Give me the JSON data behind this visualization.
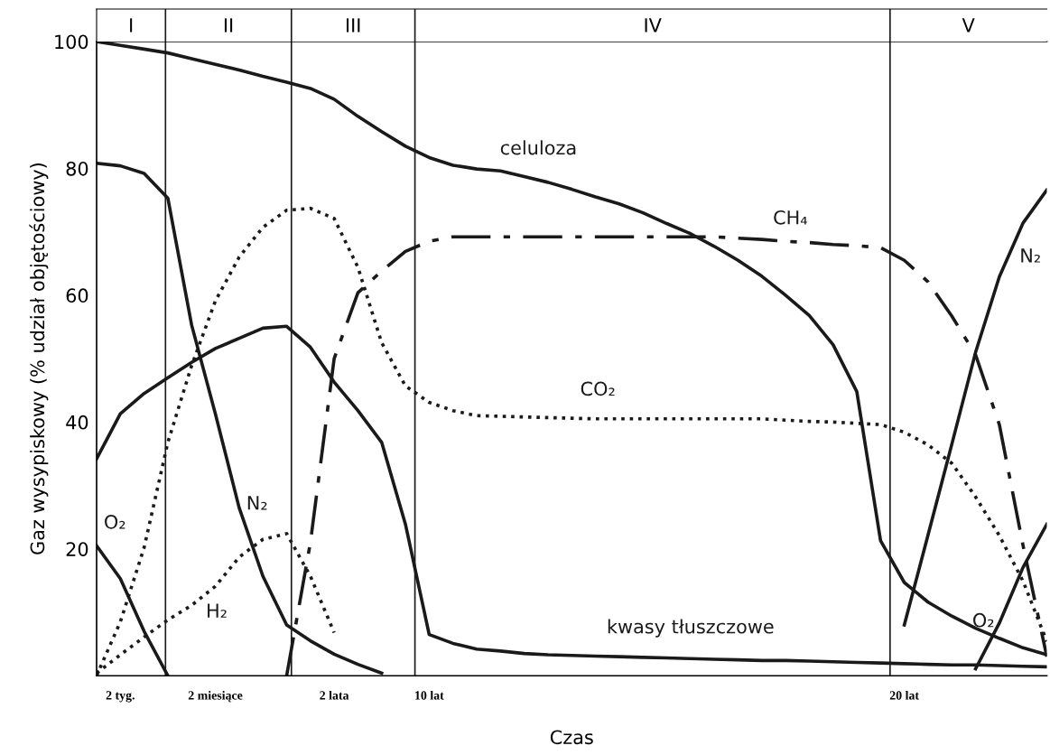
{
  "chart_data": {
    "type": "line",
    "xlabel": "Czas",
    "ylabel": "Gaz wysypiskowy (% udział objętościowy)",
    "categories": [
      null,
      "2 tyg.",
      null,
      null,
      null,
      "2 miesiące",
      null,
      null,
      null,
      null,
      "2 lata",
      null,
      null,
      null,
      "10 lat",
      null,
      null,
      null,
      null,
      null,
      null,
      null,
      null,
      null,
      null,
      null,
      null,
      null,
      null,
      null,
      null,
      null,
      null,
      null,
      "20 lat",
      null,
      null,
      null,
      null,
      null,
      null
    ],
    "ylim": [
      0,
      100
    ],
    "yticks": [
      20,
      40,
      60,
      80,
      100
    ],
    "annotations": [
      "I",
      "II",
      "III",
      "IV",
      "V"
    ],
    "series": [
      {
        "name": "celuloza",
        "color": "#1a1a1a",
        "line_style": "solid",
        "values": [
          100,
          99.4,
          98.8,
          98.2,
          97.3,
          96.4,
          95.5,
          94.5,
          93.6,
          92.6,
          90.9,
          88.2,
          85.8,
          83.5,
          81.7,
          80.5,
          79.9,
          79.6,
          78.7,
          77.8,
          76.7,
          75.5,
          74.4,
          73,
          71.3,
          69.7,
          67.7,
          65.5,
          63,
          60,
          56.8,
          52.2,
          44.8,
          21.3,
          14.7,
          11.6,
          9.4,
          7.5,
          5.9,
          4.4,
          3.3
        ]
      },
      {
        "name": "kwasy tłuszczowe",
        "color": "#1a1a1a",
        "line_style": "solid",
        "values": [
          34.2,
          41.3,
          44.5,
          47,
          49.4,
          51.6,
          53.2,
          54.8,
          55.1,
          51.8,
          46.3,
          41.8,
          36.8,
          23.9,
          6.5,
          5.1,
          4.2,
          3.9,
          3.5,
          3.3,
          3.2,
          3.1,
          3,
          2.9,
          2.8,
          2.7,
          2.6,
          2.5,
          2.4,
          2.4,
          2.3,
          2.2,
          2.1,
          2,
          1.9,
          1.8,
          1.7,
          1.7,
          1.6,
          1.5,
          1.4
        ]
      },
      {
        "name": "N₂",
        "color": "#1a1a1a",
        "line_style": "solid",
        "values": [
          80.8,
          80.4,
          79.2,
          75.3,
          55.3,
          41.3,
          26.5,
          15.7,
          8,
          5.5,
          3.4,
          1.8,
          0.4,
          null,
          null,
          null,
          null,
          null,
          null,
          null,
          null,
          null,
          null,
          null,
          null,
          null,
          null,
          null,
          null,
          null,
          null,
          null,
          null,
          null,
          null,
          null,
          null,
          null,
          null,
          null,
          null
        ]
      },
      {
        "name": "O₂",
        "color": "#1a1a1a",
        "line_style": "solid",
        "values": [
          20.5,
          15.3,
          7,
          0,
          null,
          null,
          null,
          null,
          null,
          null,
          null,
          null,
          null,
          null,
          null,
          null,
          null,
          null,
          null,
          null,
          null,
          null,
          null,
          null,
          null,
          null,
          null,
          null,
          null,
          null,
          null,
          null,
          null,
          null,
          null,
          null,
          null,
          null,
          null,
          null,
          null
        ]
      },
      {
        "name": "CO₂",
        "color": "#1a1a1a",
        "line_style": "dotted",
        "values": [
          0,
          8.5,
          20.2,
          36.8,
          48.9,
          59.1,
          66,
          70.7,
          73.4,
          73.7,
          72.1,
          64.4,
          52.5,
          45.7,
          43.1,
          41.8,
          41,
          40.9,
          40.8,
          40.7,
          40.6,
          40.5,
          40.5,
          40.5,
          40.5,
          40.5,
          40.5,
          40.5,
          40.5,
          40.3,
          40.1,
          40,
          39.8,
          39.6,
          38.4,
          36.4,
          33.5,
          28.2,
          22.1,
          14.9,
          5.4
        ]
      },
      {
        "name": "H₂",
        "color": "#1a1a1a",
        "line_style": "dotted",
        "values": [
          0.4,
          3.3,
          6.1,
          8.8,
          11.1,
          14.1,
          18.7,
          21.5,
          22.4,
          15.7,
          6.8,
          null,
          null,
          null,
          null,
          null,
          null,
          null,
          null,
          null,
          null,
          null,
          null,
          null,
          null,
          null,
          null,
          null,
          null,
          null,
          null,
          null,
          null,
          null,
          null,
          null,
          null,
          null,
          null,
          null,
          null
        ]
      },
      {
        "name": "CH₄",
        "color": "#1a1a1a",
        "line_style": "dashdot",
        "values": [
          null,
          null,
          null,
          null,
          null,
          null,
          null,
          null,
          0,
          21,
          50,
          60.4,
          63.8,
          66.9,
          68.5,
          69.2,
          69.2,
          69.2,
          69.2,
          69.2,
          69.2,
          69.2,
          69.2,
          69.2,
          69.2,
          69.2,
          69.2,
          69,
          68.8,
          68.5,
          68.3,
          68,
          67.8,
          67.5,
          65.5,
          62.1,
          56.7,
          50.6,
          39.6,
          20.5,
          3
        ]
      },
      {
        "name": "N₂",
        "color": "#1a1a1a",
        "line_style": "solid",
        "values": [
          null,
          null,
          null,
          null,
          null,
          null,
          null,
          null,
          null,
          null,
          null,
          null,
          null,
          null,
          null,
          null,
          null,
          null,
          null,
          null,
          null,
          null,
          null,
          null,
          null,
          null,
          null,
          null,
          null,
          null,
          null,
          null,
          null,
          null,
          8,
          22.2,
          36.5,
          51,
          62.9,
          71.4,
          76.6
        ]
      },
      {
        "name": "O₂",
        "color": "#1a1a1a",
        "line_style": "solid",
        "values": [
          null,
          null,
          null,
          null,
          null,
          null,
          null,
          null,
          null,
          null,
          null,
          null,
          null,
          null,
          null,
          null,
          null,
          null,
          null,
          null,
          null,
          null,
          null,
          null,
          null,
          null,
          null,
          null,
          null,
          null,
          null,
          null,
          null,
          null,
          null,
          null,
          null,
          1.1,
          8.3,
          17.1,
          23.9
        ]
      }
    ]
  }
}
